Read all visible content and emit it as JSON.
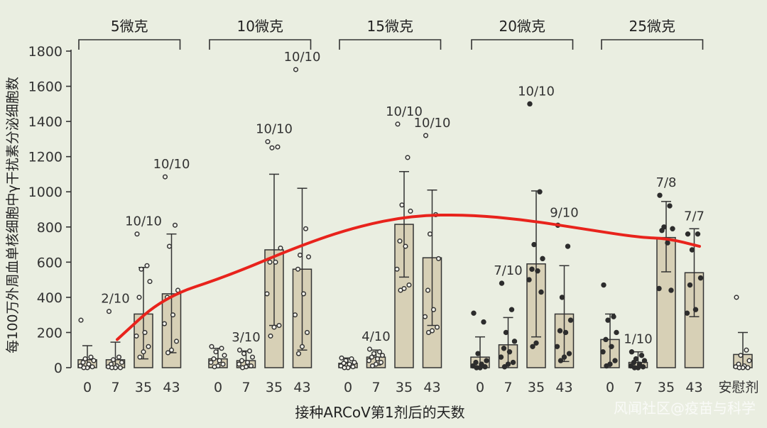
{
  "chart_data": {
    "type": "bar",
    "ylabel": "每100万外周血单核细胞中γ干扰素分泌细胞数",
    "xlabel": "接种ARCoV第1剂后的天数",
    "ylim": [
      0,
      1800
    ],
    "yticks": [
      0,
      200,
      400,
      600,
      800,
      1000,
      1200,
      1400,
      1600,
      1800
    ],
    "groups": [
      {
        "label": "5微克",
        "open_points": true,
        "bars": [
          {
            "day": "0",
            "mean": 45,
            "sd_high": 125,
            "sd_low": 0,
            "ratio": "",
            "points": [
              270,
              60,
              50,
              40,
              30,
              20,
              10,
              5,
              0,
              0
            ]
          },
          {
            "day": "7",
            "mean": 45,
            "sd_high": 145,
            "sd_low": 0,
            "ratio": "2/10",
            "points": [
              320,
              60,
              45,
              30,
              20,
              10,
              5,
              0,
              0,
              0
            ]
          },
          {
            "day": "35",
            "mean": 305,
            "sd_high": 570,
            "sd_low": 50,
            "ratio": "10/10",
            "points": [
              760,
              580,
              560,
              490,
              400,
              200,
              180,
              120,
              90,
              60
            ]
          },
          {
            "day": "43",
            "mean": 420,
            "sd_high": 760,
            "sd_low": 85,
            "ratio": "10/10",
            "points": [
              1085,
              810,
              690,
              440,
              400,
              300,
              250,
              150,
              100,
              85
            ]
          }
        ]
      },
      {
        "label": "10微克",
        "open_points": true,
        "bars": [
          {
            "day": "0",
            "mean": 50,
            "sd_high": 110,
            "sd_low": 0,
            "ratio": "",
            "points": [
              120,
              110,
              90,
              70,
              50,
              40,
              30,
              20,
              10,
              5
            ]
          },
          {
            "day": "7",
            "mean": 40,
            "sd_high": 95,
            "sd_low": 0,
            "ratio": "3/10",
            "points": [
              100,
              95,
              80,
              60,
              40,
              30,
              20,
              10,
              5,
              0
            ]
          },
          {
            "day": "35",
            "mean": 670,
            "sd_high": 1100,
            "sd_low": 240,
            "ratio": "10/10",
            "points": [
              1285,
              1255,
              1250,
              680,
              600,
              600,
              420,
              240,
              230,
              180
            ]
          },
          {
            "day": "43",
            "mean": 560,
            "sd_high": 1020,
            "sd_low": 100,
            "ratio": "10/10",
            "points": [
              1695,
              790,
              640,
              630,
              560,
              420,
              300,
              200,
              120,
              80
            ]
          }
        ]
      },
      {
        "label": "15微克",
        "open_points": true,
        "bars": [
          {
            "day": "0",
            "mean": 25,
            "sd_high": 55,
            "sd_low": 0,
            "ratio": "",
            "points": [
              55,
              50,
              40,
              30,
              25,
              20,
              10,
              5,
              0,
              0
            ]
          },
          {
            "day": "7",
            "mean": 60,
            "sd_high": 100,
            "sd_low": 15,
            "ratio": "4/10",
            "points": [
              105,
              90,
              80,
              70,
              60,
              50,
              40,
              30,
              20,
              10
            ]
          },
          {
            "day": "35",
            "mean": 815,
            "sd_high": 1115,
            "sd_low": 515,
            "ratio": "10/10",
            "points": [
              1385,
              1195,
              925,
              890,
              720,
              690,
              560,
              470,
              450,
              440
            ]
          },
          {
            "day": "43",
            "mean": 625,
            "sd_high": 1010,
            "sd_low": 240,
            "ratio": "10/10",
            "points": [
              1320,
              870,
              760,
              620,
              440,
              330,
              290,
              230,
              210,
              200
            ]
          }
        ]
      },
      {
        "label": "20微克",
        "open_points": false,
        "bars": [
          {
            "day": "0",
            "mean": 60,
            "sd_high": 175,
            "sd_low": 0,
            "ratio": "",
            "points": [
              310,
              260,
              80,
              40,
              30,
              20,
              10,
              5,
              0,
              0
            ]
          },
          {
            "day": "7",
            "mean": 130,
            "sd_high": 285,
            "sd_low": 0,
            "ratio": "7/10",
            "points": [
              480,
              330,
              200,
              150,
              110,
              90,
              60,
              30,
              20,
              5
            ]
          },
          {
            "day": "35",
            "mean": 590,
            "sd_high": 1005,
            "sd_low": 175,
            "ratio": "10/10",
            "points": [
              1500,
              1000,
              700,
              620,
              560,
              550,
              500,
              430,
              140,
              120
            ]
          },
          {
            "day": "43",
            "mean": 305,
            "sd_high": 580,
            "sd_low": 35,
            "ratio": "9/10",
            "points": [
              810,
              690,
              400,
              270,
              210,
              200,
              120,
              80,
              60,
              40
            ]
          }
        ]
      },
      {
        "label": "25微克",
        "open_points": false,
        "bars": [
          {
            "day": "0",
            "mean": 160,
            "sd_high": 305,
            "sd_low": 0,
            "ratio": "",
            "points": [
              470,
              290,
              270,
              200,
              160,
              120,
              90,
              40,
              20,
              10
            ]
          },
          {
            "day": "7",
            "mean": 30,
            "sd_high": 90,
            "sd_low": 0,
            "ratio": "1/10",
            "points": [
              90,
              70,
              50,
              40,
              30,
              20,
              10,
              5,
              0,
              0
            ]
          },
          {
            "day": "35",
            "mean": 740,
            "sd_high": 945,
            "sd_low": 545,
            "ratio": "7/8",
            "points": [
              980,
              920,
              800,
              790,
              780,
              710,
              450,
              440
            ]
          },
          {
            "day": "43",
            "mean": 540,
            "sd_high": 790,
            "sd_low": 290,
            "ratio": "7/7",
            "points": [
              760,
              760,
              670,
              510,
              470,
              330,
              310
            ]
          }
        ]
      }
    ],
    "placebo": {
      "label": "安慰剂",
      "mean": 75,
      "sd_high": 200,
      "sd_low": 0,
      "points": [
        400,
        100,
        70,
        40,
        20,
        10,
        5,
        0,
        0,
        0
      ]
    },
    "trend_line_color": "#e8231c"
  },
  "watermark": "风闻社区@疫苗与科学"
}
